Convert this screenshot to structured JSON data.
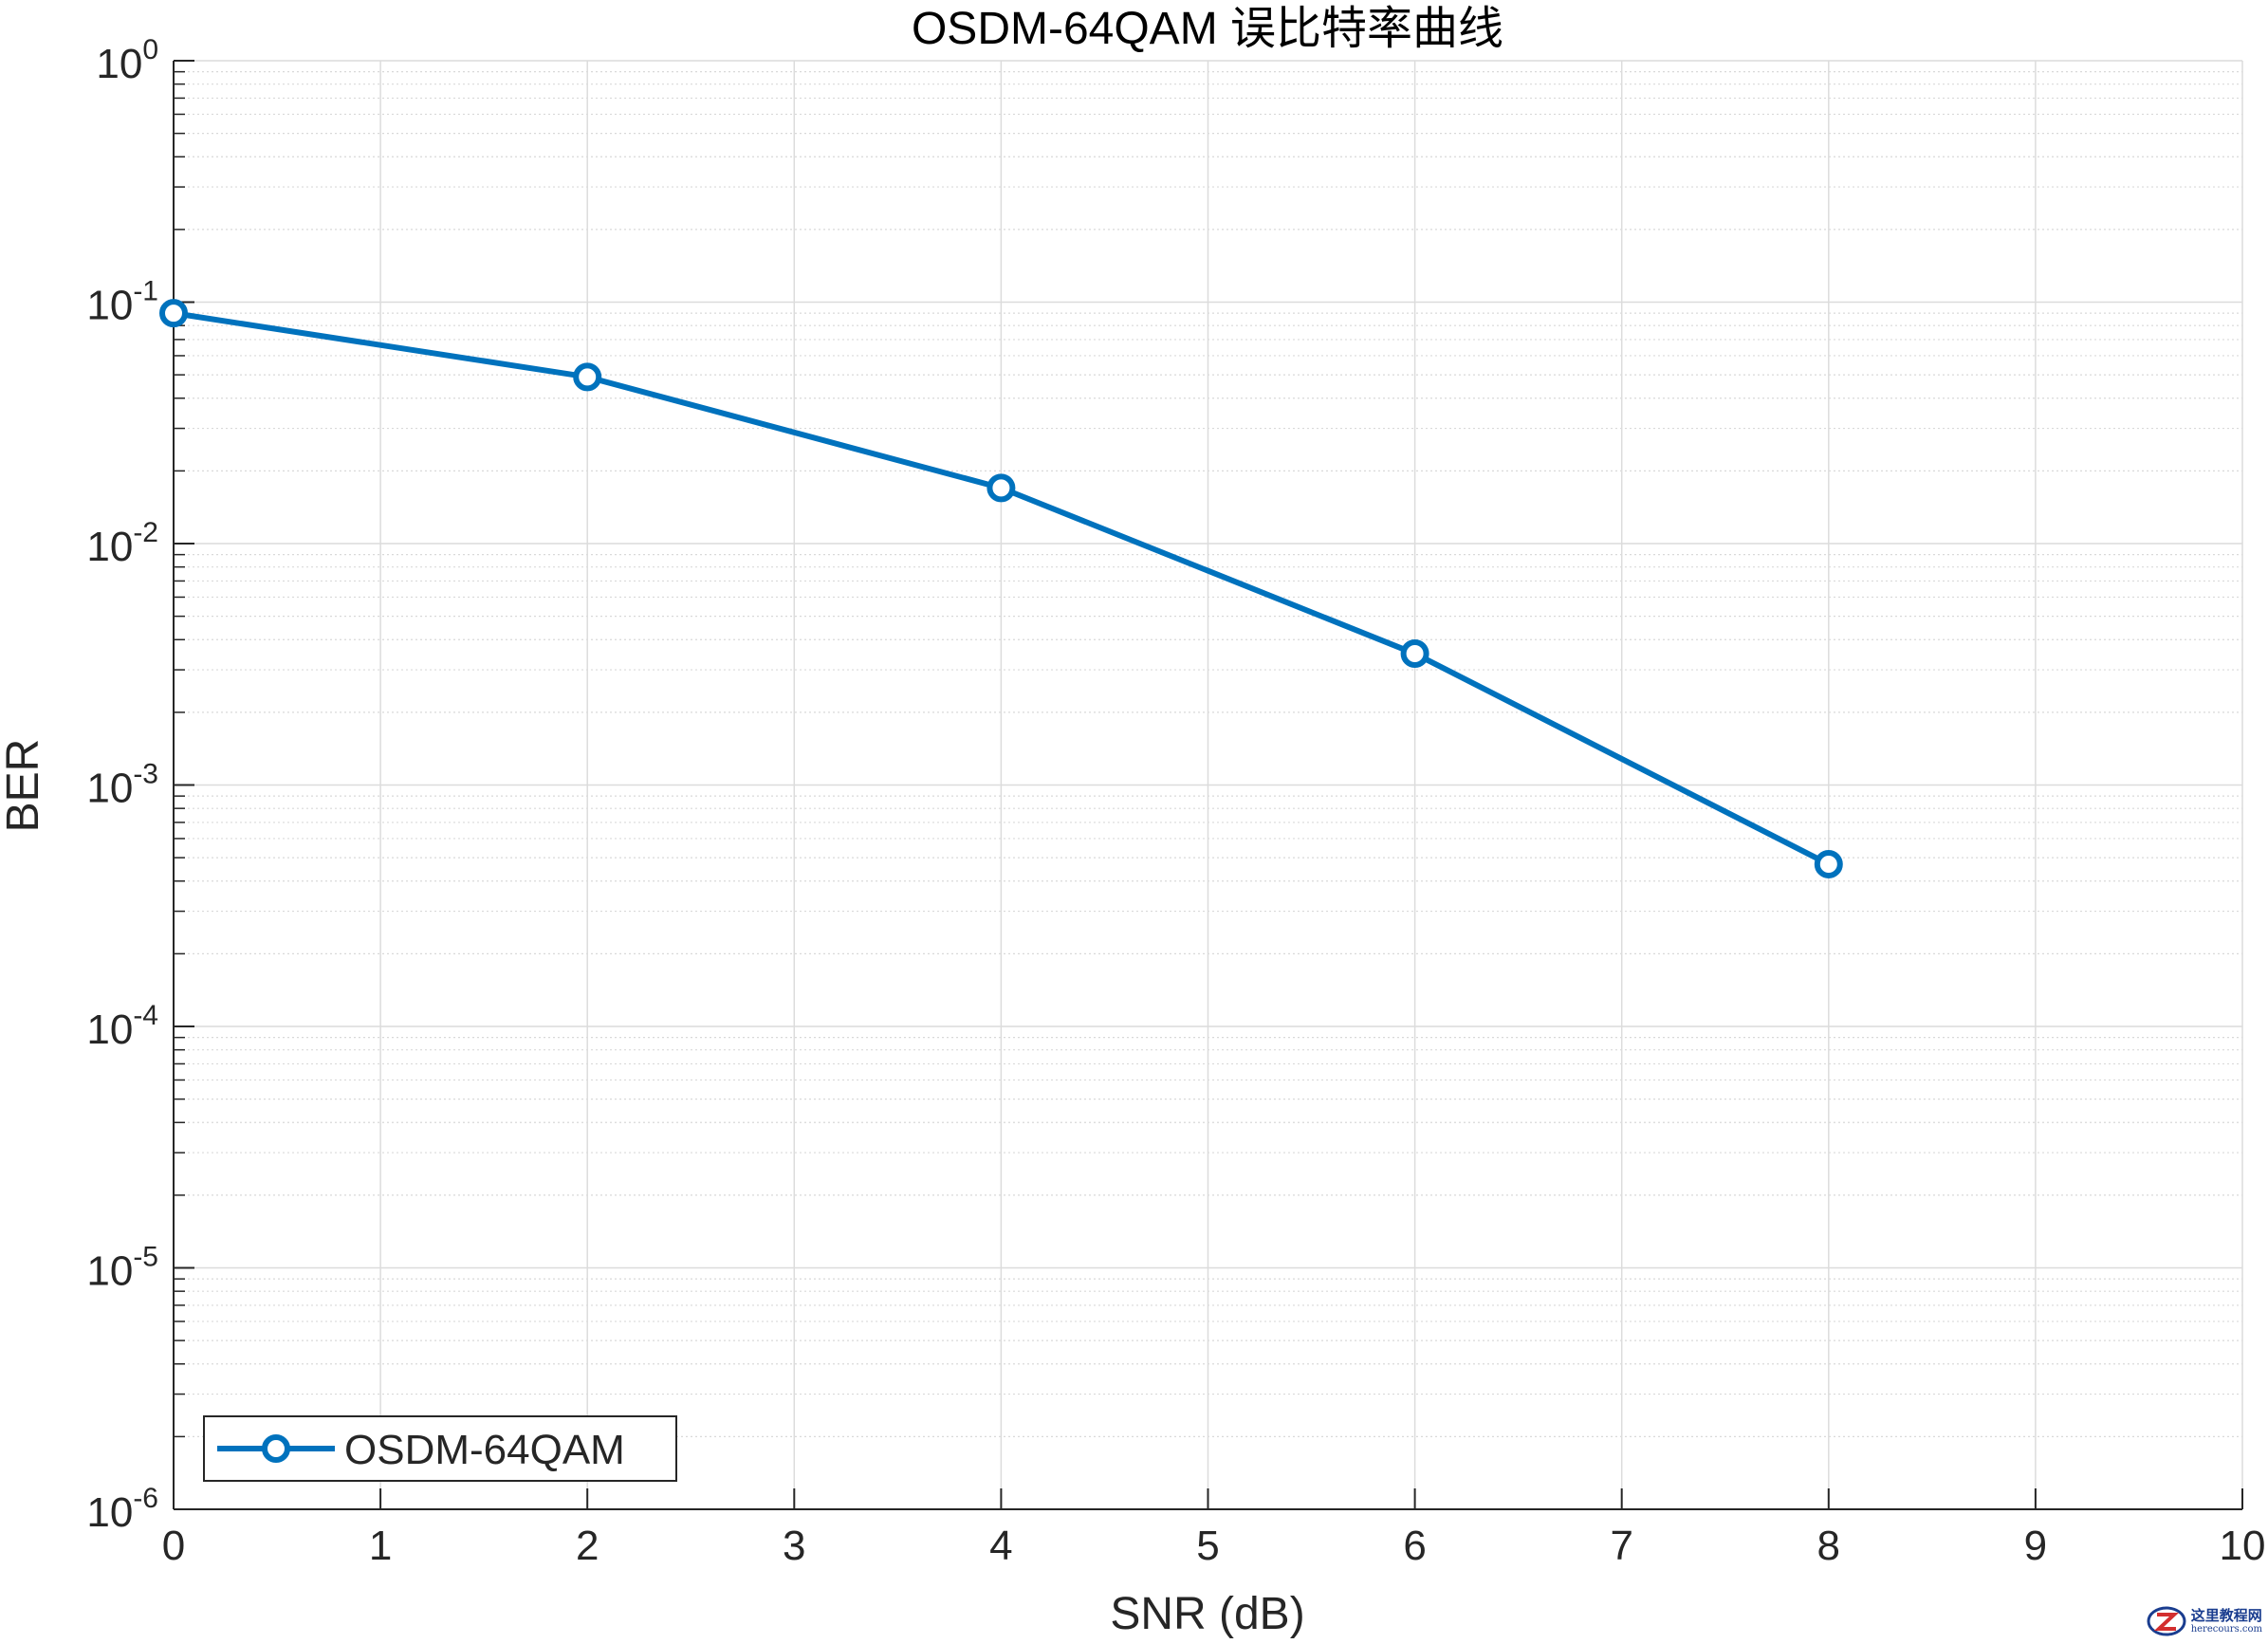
{
  "chart_data": {
    "type": "line",
    "title": "OSDM-64QAM 误比特率曲线",
    "xlabel": "SNR (dB)",
    "ylabel": "BER",
    "xlim": [
      0,
      10
    ],
    "ylim": [
      1e-06,
      1
    ],
    "yscale": "log",
    "grid": true,
    "minor_grid": true,
    "legend_position": "bottom-left",
    "x_ticks": [
      0,
      1,
      2,
      3,
      4,
      5,
      6,
      7,
      8,
      9,
      10
    ],
    "x_tick_labels": [
      "0",
      "1",
      "2",
      "3",
      "4",
      "5",
      "6",
      "7",
      "8",
      "9",
      "10"
    ],
    "y_ticks": [
      1,
      0.1,
      0.01,
      0.001,
      0.0001,
      1e-05,
      1e-06
    ],
    "y_tick_labels": [
      {
        "base": "10",
        "exp": "0"
      },
      {
        "base": "10",
        "exp": "-1"
      },
      {
        "base": "10",
        "exp": "-2"
      },
      {
        "base": "10",
        "exp": "-3"
      },
      {
        "base": "10",
        "exp": "-4"
      },
      {
        "base": "10",
        "exp": "-5"
      },
      {
        "base": "10",
        "exp": "-6"
      }
    ],
    "series": [
      {
        "name": "OSDM-64QAM",
        "color": "#0072BD",
        "marker": "circle",
        "x": [
          0,
          2,
          4,
          6,
          8
        ],
        "y": [
          0.09,
          0.049,
          0.017,
          0.0035,
          0.00047
        ]
      }
    ]
  },
  "watermark": {
    "cn": "这里教程网",
    "url": "herecours.com"
  }
}
